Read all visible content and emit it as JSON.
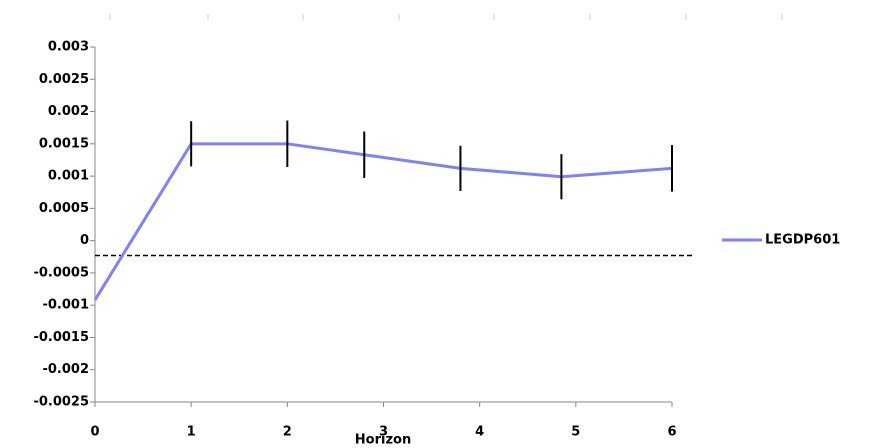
{
  "chart_data": {
    "type": "line",
    "x_label": "Horizon",
    "x": [
      0,
      1,
      2,
      2.8,
      3.8,
      4.85,
      6
    ],
    "series": [
      {
        "name": "LEGDP601",
        "color": "#8080f8",
        "values": [
          -0.00092,
          0.0015,
          0.0015,
          0.00133,
          0.00112,
          0.00099,
          0.00112
        ],
        "errors": [
          null,
          0.00035,
          0.00036,
          0.00036,
          0.00035,
          0.00035,
          0.00036
        ]
      }
    ],
    "reference_line": -0.00023,
    "xlim": [
      0,
      6
    ],
    "xticks": [
      0,
      1,
      2,
      3,
      4,
      5,
      6
    ],
    "ylim": [
      -0.0025,
      0.003
    ],
    "yticks": [
      0.003,
      0.0025,
      0.002,
      0.0015,
      0.001,
      0.0005,
      0,
      -0.0005,
      -0.001,
      -0.0015,
      -0.002,
      -0.0025
    ],
    "legend": "right"
  }
}
